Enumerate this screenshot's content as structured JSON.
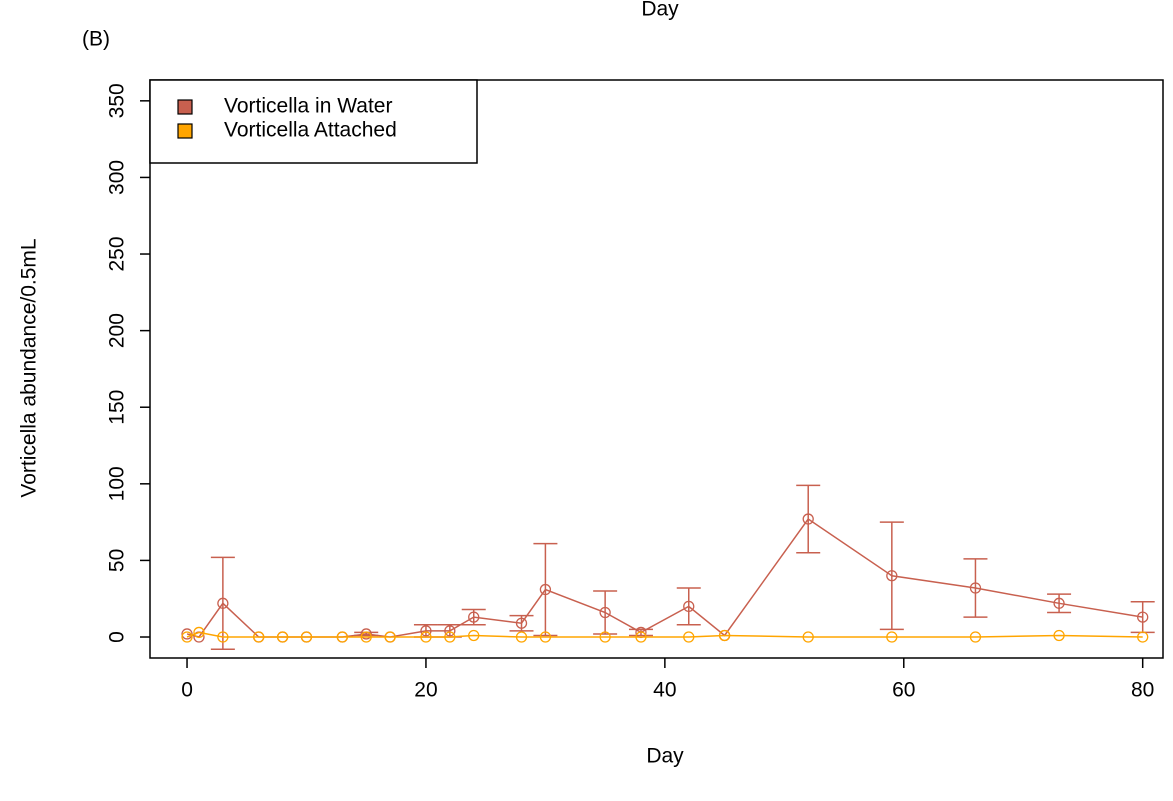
{
  "chart_data": {
    "type": "line",
    "top_text": "Day",
    "panel_label": "(B)",
    "xlabel": "Day",
    "ylabel": "Vorticella abundance/0.5mL",
    "xlim": [
      -3.1,
      81.7
    ],
    "ylim": [
      -13.7,
      363.6
    ],
    "xticks": [
      0,
      20,
      40,
      60,
      80
    ],
    "yticks": [
      0,
      50,
      100,
      150,
      200,
      250,
      300,
      350
    ],
    "legend": "top-left",
    "x": [
      0,
      1,
      3,
      6,
      8,
      10,
      13,
      15,
      17,
      20,
      22,
      24,
      28,
      30,
      35,
      38,
      42,
      45,
      52,
      59,
      66,
      73,
      80
    ],
    "series": [
      {
        "name": "Vorticella in Water",
        "color": "#c8604f",
        "values": [
          2,
          0,
          22,
          0,
          0,
          0,
          0,
          2,
          0,
          4,
          4,
          13,
          9,
          31,
          16,
          3,
          20,
          1,
          77,
          40,
          32,
          22,
          13
        ],
        "errors": [
          null,
          null,
          30,
          null,
          null,
          null,
          null,
          1,
          null,
          4,
          4,
          5,
          5,
          30,
          14,
          2,
          12,
          null,
          22,
          35,
          19,
          6,
          10
        ]
      },
      {
        "name": "Vorticella Attached",
        "color": "#ffa500",
        "values": [
          0,
          3,
          0,
          0,
          0,
          0,
          0,
          0,
          0,
          0,
          0,
          1,
          0,
          0,
          0,
          0,
          0,
          1,
          0,
          0,
          0,
          1,
          0
        ]
      }
    ]
  }
}
